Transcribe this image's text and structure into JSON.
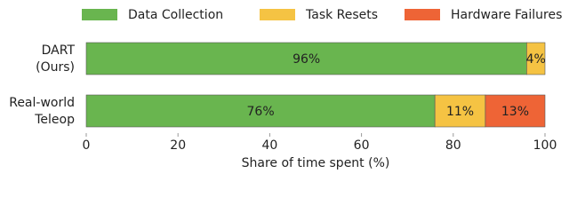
{
  "chart_data": {
    "type": "stacked_barh",
    "categories": [
      [
        "DART",
        "(Ours)"
      ],
      [
        "Real-world",
        "Teleop"
      ]
    ],
    "series": [
      {
        "name": "Data Collection",
        "color": "#69b54f",
        "values": [
          96,
          76
        ],
        "value_labels": [
          "96%",
          "76%"
        ]
      },
      {
        "name": "Task Resets",
        "color": "#f5c343",
        "values": [
          4,
          11
        ],
        "value_labels": [
          "4%",
          "11%"
        ]
      },
      {
        "name": "Hardware Failures",
        "color": "#ee6436",
        "values": [
          0,
          13
        ],
        "value_labels": [
          null,
          "13%"
        ]
      }
    ],
    "xlabel": "Share of time spent (%)",
    "xlim": [
      0,
      100
    ],
    "xticks": [
      0,
      20,
      40,
      60,
      80,
      100
    ],
    "legend": "top"
  }
}
